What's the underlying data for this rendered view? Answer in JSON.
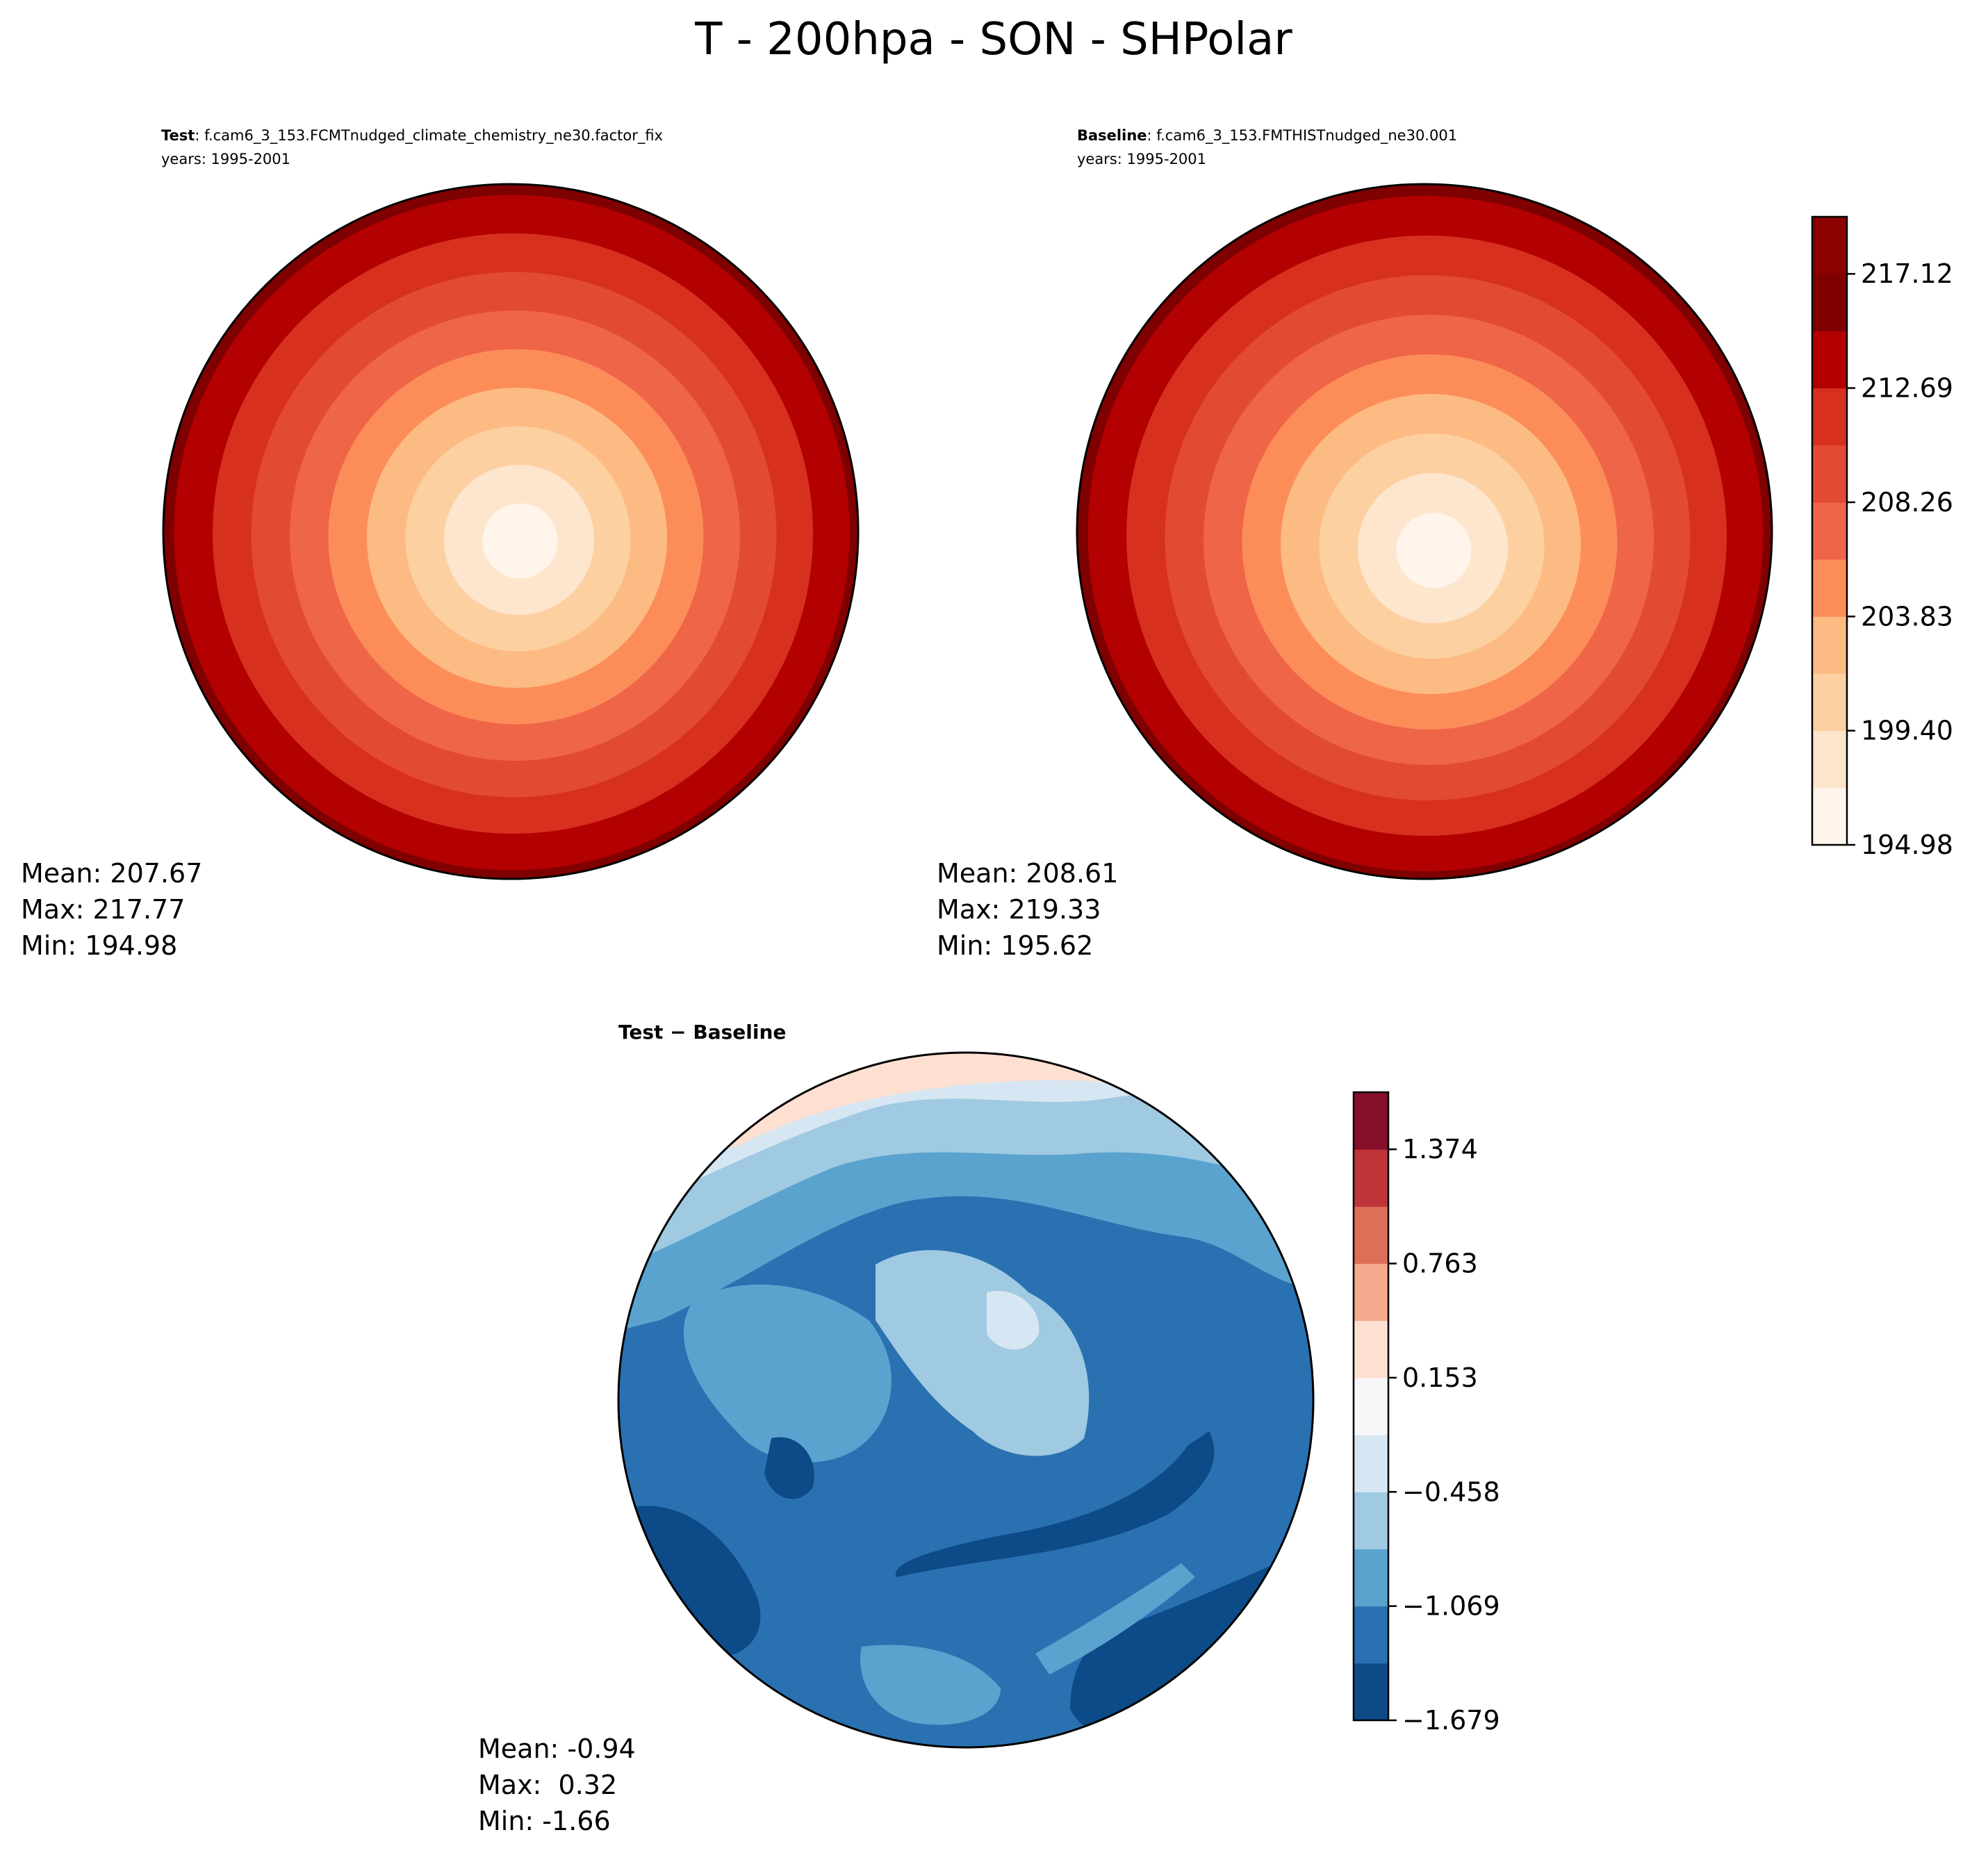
{
  "figure": {
    "title": "T - 200hpa - SON - SHPolar"
  },
  "panels": [
    {
      "id": "test",
      "header_bold": "Test",
      "header_rest": ": f.cam6_3_153.FCMTnudged_climate_chemistry_ne30.factor_fix",
      "subheader": "years: 1995-2001",
      "stats": {
        "mean": "Mean: 207.67",
        "max": "Max: 217.77",
        "min": "Min: 194.98"
      },
      "colormap": "RdBu_r-red-half",
      "cold_center": [
        0.03,
        0.03
      ]
    },
    {
      "id": "baseline",
      "header_bold": "Baseline",
      "header_rest": ": f.cam6_3_153.FMTHISTnudged_ne30.001",
      "subheader": "years: 1995-2001",
      "stats": {
        "mean": "Mean: 208.61",
        "max": "Max: 219.33",
        "min": "Min: 195.62"
      },
      "colormap": "RdBu_r-red-half",
      "cold_center": [
        0.03,
        0.06
      ]
    },
    {
      "id": "diff",
      "header_bold": "Test − Baseline",
      "header_rest": "",
      "subheader": "",
      "stats": {
        "mean": "Mean: -0.94",
        "max": "Max:  0.32",
        "min": "Min: -1.66"
      },
      "colormap": "RdBu_r"
    }
  ],
  "colorbars": [
    {
      "id": "main",
      "colors": [
        "#fff5eb",
        "#fee6ce",
        "#fdd0a2",
        "#fdbb84",
        "#fc8d59",
        "#ef6548",
        "#e34a33",
        "#d7301f",
        "#b30000",
        "#7f0000",
        "#8b0000"
      ],
      "ticks": [
        "194.98",
        "199.40",
        "203.83",
        "208.26",
        "212.69",
        "217.12"
      ],
      "vmin": 194.98,
      "vmax": 219.33
    },
    {
      "id": "diff",
      "colors": [
        "#0d4a88",
        "#2a71b2",
        "#5ba3cf",
        "#9fcae1",
        "#d6e6f3",
        "#f7f7f7",
        "#fde0d2",
        "#f6aa8d",
        "#dd6f58",
        "#c0353a",
        "#860e29"
      ],
      "ticks": [
        "−1.679",
        "−1.069",
        "−0.458",
        "0.153",
        "0.763",
        "1.374"
      ],
      "vmin": -1.679,
      "vmax": 1.68
    }
  ]
}
